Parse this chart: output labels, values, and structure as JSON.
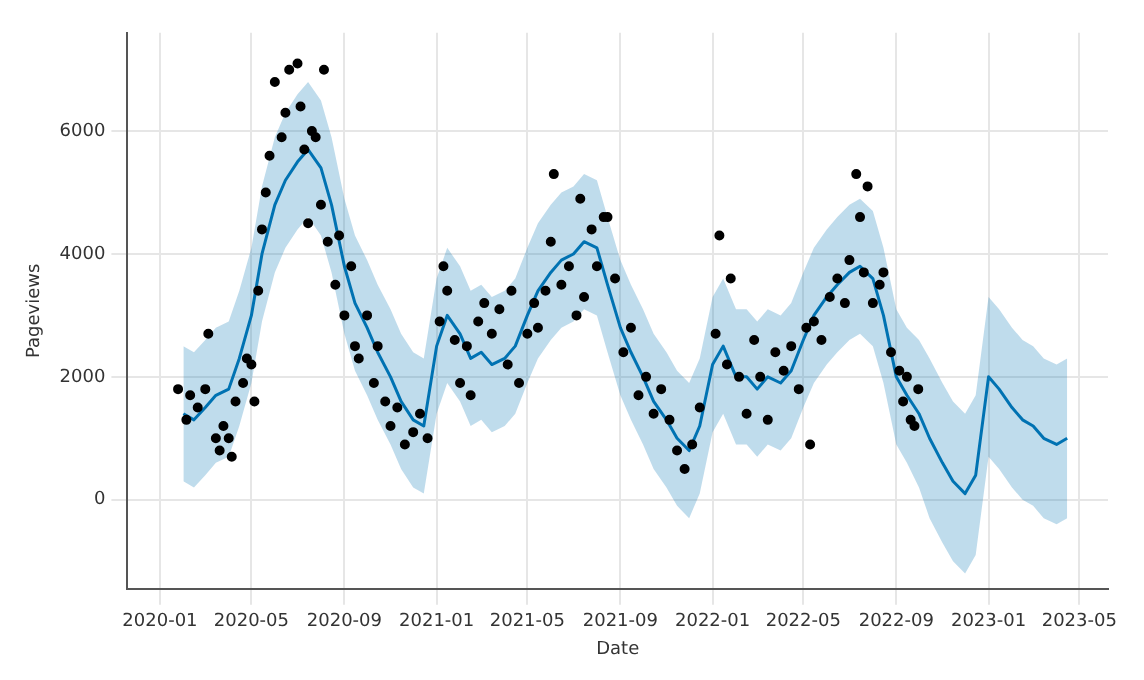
{
  "chart_data": {
    "type": "line",
    "xlabel": "Date",
    "ylabel": "Pageviews",
    "xlim": [
      "2019-11-19",
      "2023-06-08"
    ],
    "ylim": [
      -1450,
      7600
    ],
    "xticks": [
      "2020-01",
      "2020-05",
      "2020-09",
      "2021-01",
      "2021-05",
      "2021-09",
      "2022-01",
      "2022-05",
      "2022-09",
      "2023-01",
      "2023-05"
    ],
    "yticks": [
      0,
      2000,
      4000,
      6000
    ],
    "grid": true,
    "legend": false,
    "series": [
      {
        "color": "#0072b2",
        "marker": "none",
        "line_style": "solid",
        "x": [
          "2020-02-01",
          "2020-02-15",
          "2020-03-01",
          "2020-03-15",
          "2020-04-01",
          "2020-04-15",
          "2020-05-01",
          "2020-05-15",
          "2020-06-01",
          "2020-06-15",
          "2020-07-01",
          "2020-07-15",
          "2020-08-01",
          "2020-08-15",
          "2020-09-01",
          "2020-09-15",
          "2020-10-01",
          "2020-10-15",
          "2020-11-01",
          "2020-11-15",
          "2020-12-01",
          "2020-12-15",
          "2021-01-01",
          "2021-01-15",
          "2021-02-01",
          "2021-02-15",
          "2021-03-01",
          "2021-03-15",
          "2021-04-01",
          "2021-04-15",
          "2021-05-01",
          "2021-05-15",
          "2021-06-01",
          "2021-06-15",
          "2021-07-01",
          "2021-07-15",
          "2021-08-01",
          "2021-08-15",
          "2021-09-01",
          "2021-09-15",
          "2021-10-01",
          "2021-10-15",
          "2021-11-01",
          "2021-11-15",
          "2021-12-01",
          "2021-12-15",
          "2022-01-01",
          "2022-01-15",
          "2022-02-01",
          "2022-02-15",
          "2022-03-01",
          "2022-03-15",
          "2022-04-01",
          "2022-04-15",
          "2022-05-01",
          "2022-05-15",
          "2022-06-01",
          "2022-06-15",
          "2022-07-01",
          "2022-07-15",
          "2022-08-01",
          "2022-08-15",
          "2022-09-01",
          "2022-09-15",
          "2022-10-01",
          "2022-10-15",
          "2022-11-01",
          "2022-11-15",
          "2022-12-01",
          "2022-12-15",
          "2023-01-01",
          "2023-01-15",
          "2023-02-01",
          "2023-02-15",
          "2023-03-01",
          "2023-03-15",
          "2023-04-01",
          "2023-04-15"
        ],
        "values": [
          1400,
          1300,
          1500,
          1700,
          1800,
          2300,
          3000,
          4000,
          4800,
          5200,
          5500,
          5700,
          5400,
          4800,
          3800,
          3200,
          2800,
          2400,
          2000,
          1600,
          1300,
          1200,
          2500,
          3000,
          2700,
          2300,
          2400,
          2200,
          2300,
          2500,
          3000,
          3400,
          3700,
          3900,
          4000,
          4200,
          4100,
          3500,
          2800,
          2400,
          2000,
          1600,
          1300,
          1000,
          800,
          1200,
          2200,
          2500,
          2000,
          2000,
          1800,
          2000,
          1900,
          2100,
          2600,
          3000,
          3300,
          3500,
          3700,
          3800,
          3600,
          3000,
          2000,
          1700,
          1400,
          1000,
          600,
          300,
          100,
          400,
          2000,
          1800,
          1500,
          1300,
          1200,
          1000,
          900,
          1000
        ],
        "lower": [
          300,
          200,
          400,
          600,
          700,
          1200,
          1900,
          2900,
          3700,
          4100,
          4400,
          4600,
          4300,
          3700,
          2700,
          2100,
          1700,
          1300,
          900,
          500,
          200,
          100,
          1400,
          1900,
          1600,
          1200,
          1300,
          1100,
          1200,
          1400,
          1900,
          2300,
          2600,
          2800,
          2900,
          3100,
          3000,
          2400,
          1700,
          1300,
          900,
          500,
          200,
          -100,
          -300,
          100,
          1100,
          1400,
          900,
          900,
          700,
          900,
          800,
          1000,
          1500,
          1900,
          2200,
          2400,
          2600,
          2700,
          2500,
          1900,
          900,
          600,
          200,
          -300,
          -700,
          -1000,
          -1200,
          -900,
          700,
          500,
          200,
          0,
          -100,
          -300,
          -400,
          -300
        ],
        "upper": [
          2500,
          2400,
          2600,
          2800,
          2900,
          3400,
          4100,
          5100,
          5900,
          6300,
          6600,
          6800,
          6500,
          5900,
          4900,
          4300,
          3900,
          3500,
          3100,
          2700,
          2400,
          2300,
          3600,
          4100,
          3800,
          3400,
          3500,
          3300,
          3400,
          3600,
          4100,
          4500,
          4800,
          5000,
          5100,
          5300,
          5200,
          4600,
          3900,
          3500,
          3100,
          2700,
          2400,
          2100,
          1900,
          2300,
          3300,
          3600,
          3100,
          3100,
          2900,
          3100,
          3000,
          3200,
          3700,
          4100,
          4400,
          4600,
          4800,
          4900,
          4700,
          4100,
          3100,
          2800,
          2600,
          2300,
          1900,
          1600,
          1400,
          1700,
          3300,
          3100,
          2800,
          2600,
          2500,
          2300,
          2200,
          2300
        ]
      },
      {
        "type": "scatter",
        "color": "#000000",
        "marker": "circle",
        "x": [
          "2020-01-25",
          "2020-02-05",
          "2020-02-10",
          "2020-02-20",
          "2020-03-01",
          "2020-03-05",
          "2020-03-15",
          "2020-03-20",
          "2020-03-25",
          "2020-04-01",
          "2020-04-05",
          "2020-04-10",
          "2020-04-20",
          "2020-04-25",
          "2020-05-01",
          "2020-05-05",
          "2020-05-10",
          "2020-05-15",
          "2020-05-20",
          "2020-05-25",
          "2020-06-01",
          "2020-06-10",
          "2020-06-15",
          "2020-06-20",
          "2020-07-01",
          "2020-07-05",
          "2020-07-10",
          "2020-07-15",
          "2020-07-20",
          "2020-07-25",
          "2020-08-01",
          "2020-08-05",
          "2020-08-10",
          "2020-08-20",
          "2020-08-25",
          "2020-09-01",
          "2020-09-10",
          "2020-09-15",
          "2020-09-20",
          "2020-10-01",
          "2020-10-10",
          "2020-10-15",
          "2020-10-25",
          "2020-11-01",
          "2020-11-10",
          "2020-11-20",
          "2020-12-01",
          "2020-12-10",
          "2020-12-20",
          "2021-01-05",
          "2021-01-10",
          "2021-01-15",
          "2021-01-25",
          "2021-02-01",
          "2021-02-10",
          "2021-02-15",
          "2021-02-25",
          "2021-03-05",
          "2021-03-15",
          "2021-03-25",
          "2021-04-05",
          "2021-04-10",
          "2021-04-20",
          "2021-05-01",
          "2021-05-10",
          "2021-05-15",
          "2021-05-25",
          "2021-06-01",
          "2021-06-05",
          "2021-06-15",
          "2021-06-25",
          "2021-07-05",
          "2021-07-10",
          "2021-07-15",
          "2021-07-25",
          "2021-08-01",
          "2021-08-10",
          "2021-08-15",
          "2021-08-25",
          "2021-09-05",
          "2021-09-15",
          "2021-09-25",
          "2021-10-05",
          "2021-10-15",
          "2021-10-25",
          "2021-11-05",
          "2021-11-15",
          "2021-11-25",
          "2021-12-05",
          "2021-12-15",
          "2022-01-05",
          "2022-01-10",
          "2022-01-20",
          "2022-01-25",
          "2022-02-05",
          "2022-02-15",
          "2022-02-25",
          "2022-03-05",
          "2022-03-15",
          "2022-03-25",
          "2022-04-05",
          "2022-04-15",
          "2022-04-25",
          "2022-05-05",
          "2022-05-10",
          "2022-05-15",
          "2022-05-25",
          "2022-06-05",
          "2022-06-15",
          "2022-06-25",
          "2022-07-01",
          "2022-07-10",
          "2022-07-15",
          "2022-07-20",
          "2022-07-25",
          "2022-08-01",
          "2022-08-10",
          "2022-08-15",
          "2022-08-25",
          "2022-09-05",
          "2022-09-10",
          "2022-09-15",
          "2022-09-20",
          "2022-09-25",
          "2022-09-30"
        ],
        "values": [
          1800,
          1300,
          1700,
          1500,
          1800,
          2700,
          1000,
          800,
          1200,
          1000,
          700,
          1600,
          1900,
          2300,
          2200,
          1600,
          3400,
          4400,
          5000,
          5600,
          6800,
          5900,
          6300,
          7000,
          7100,
          6400,
          5700,
          4500,
          6000,
          5900,
          4800,
          7000,
          4200,
          3500,
          4300,
          3000,
          3800,
          2500,
          2300,
          3000,
          1900,
          2500,
          1600,
          1200,
          1500,
          900,
          1100,
          1400,
          1000,
          2900,
          3800,
          3400,
          2600,
          1900,
          2500,
          1700,
          2900,
          3200,
          2700,
          3100,
          2200,
          3400,
          1900,
          2700,
          3200,
          2800,
          3400,
          4200,
          5300,
          3500,
          3800,
          3000,
          4900,
          3300,
          4400,
          3800,
          4600,
          4600,
          3600,
          2400,
          2800,
          1700,
          2000,
          1400,
          1800,
          1300,
          800,
          500,
          900,
          1500,
          2700,
          4300,
          2200,
          3600,
          2000,
          1400,
          2600,
          2000,
          1300,
          2400,
          2100,
          2500,
          1800,
          2800,
          900,
          2900,
          2600,
          3300,
          3600,
          3200,
          3900,
          5300,
          4600,
          3700,
          5100,
          3200,
          3500,
          3700,
          2400,
          2100,
          1600,
          2000,
          1300,
          1200,
          1800
        ]
      }
    ]
  }
}
